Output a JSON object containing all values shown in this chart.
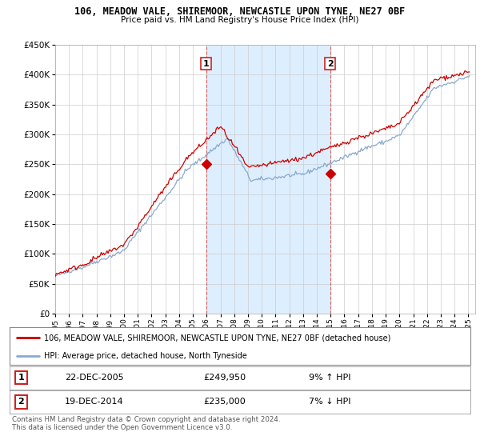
{
  "title1": "106, MEADOW VALE, SHIREMOOR, NEWCASTLE UPON TYNE, NE27 0BF",
  "title2": "Price paid vs. HM Land Registry's House Price Index (HPI)",
  "legend_line1": "106, MEADOW VALE, SHIREMOOR, NEWCASTLE UPON TYNE, NE27 0BF (detached house)",
  "legend_line2": "HPI: Average price, detached house, North Tyneside",
  "annotation1_label": "1",
  "annotation1_date": "22-DEC-2005",
  "annotation1_price": "£249,950",
  "annotation1_hpi": "9% ↑ HPI",
  "annotation2_label": "2",
  "annotation2_date": "19-DEC-2014",
  "annotation2_price": "£235,000",
  "annotation2_hpi": "7% ↓ HPI",
  "footer": "Contains HM Land Registry data © Crown copyright and database right 2024.\nThis data is licensed under the Open Government Licence v3.0.",
  "sale1_x": 2005.97,
  "sale1_y": 249950,
  "sale2_x": 2014.97,
  "sale2_y": 235000,
  "red_color": "#cc0000",
  "blue_color": "#88aacc",
  "highlight_bg": "#ddeeff",
  "xmin": 1995,
  "xmax": 2025.5,
  "ymin": 0,
  "ymax": 450000,
  "yticks": [
    0,
    50000,
    100000,
    150000,
    200000,
    250000,
    300000,
    350000,
    400000,
    450000
  ]
}
